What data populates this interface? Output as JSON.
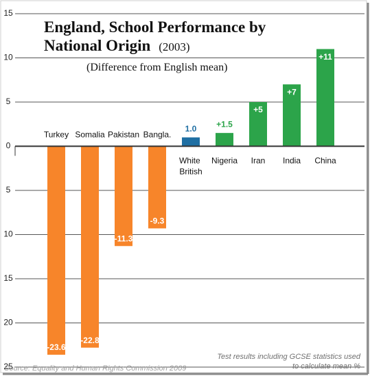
{
  "chart_data": {
    "type": "bar",
    "title": "England, School Performance by National Origin",
    "title_year": "(2003)",
    "subtitle": "(Difference from English mean)",
    "source": "Source: Equality and Human Rights Commission 2009",
    "note": "Test results including GCSE statistics used to calculate mean %",
    "categories": [
      "Turkey",
      "Somalia",
      "Pakistan",
      "Bangla.",
      "White British",
      "Nigeria",
      "Iran",
      "India",
      "China"
    ],
    "values": [
      -23.6,
      -22.8,
      -11.3,
      -9.3,
      1.0,
      1.5,
      5,
      7,
      11
    ],
    "value_labels": [
      "-23.6",
      "-22.8",
      "-11.3",
      "-9.3",
      "1.0",
      "+1.5",
      "+5",
      "+7",
      "+11"
    ],
    "colors": [
      "#f7852a",
      "#f7852a",
      "#f7852a",
      "#f7852a",
      "#1f6fa3",
      "#2ca44a",
      "#2ca44a",
      "#2ca44a",
      "#2ca44a"
    ],
    "ylim": [
      -25,
      15
    ],
    "yticks": [
      15,
      10,
      5,
      0,
      {
        "value": -5,
        "label": "5"
      },
      {
        "value": -10,
        "label": "10"
      },
      {
        "value": -15,
        "label": "15"
      },
      {
        "value": -20,
        "label": "20"
      },
      {
        "value": -25,
        "label": "25"
      }
    ],
    "grid": true
  }
}
